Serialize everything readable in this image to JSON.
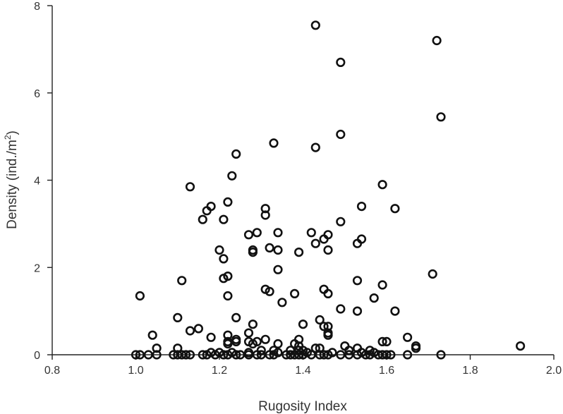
{
  "chart_data": {
    "type": "scatter",
    "xlabel": "Rugosity Index",
    "ylabel_main": "Density (ind./m",
    "ylabel_sup": "2",
    "ylabel_close": ")",
    "xlim": [
      0.8,
      2.0
    ],
    "ylim": [
      0,
      8
    ],
    "xticks": [
      0.8,
      1.0,
      1.2,
      1.4,
      1.6,
      1.8,
      2.0
    ],
    "xtick_labels": [
      "0.8",
      "1.0",
      "1.2",
      "1.4",
      "1.6",
      "1.8",
      "2.0"
    ],
    "yticks": [
      0,
      2,
      4,
      6,
      8
    ],
    "ytick_labels": [
      "0",
      "2",
      "4",
      "6",
      "8"
    ],
    "grid": false,
    "marker": "open-circle",
    "marker_color": "#111111",
    "points": [
      [
        1.01,
        1.35
      ],
      [
        1.11,
        1.7
      ],
      [
        1.13,
        3.85
      ],
      [
        1.16,
        3.1
      ],
      [
        1.17,
        3.3
      ],
      [
        1.18,
        3.4
      ],
      [
        1.2,
        2.4
      ],
      [
        1.21,
        3.1
      ],
      [
        1.21,
        2.2
      ],
      [
        1.21,
        1.75
      ],
      [
        1.22,
        3.5
      ],
      [
        1.22,
        1.8
      ],
      [
        1.22,
        1.35
      ],
      [
        1.23,
        4.1
      ],
      [
        1.24,
        4.6
      ],
      [
        1.27,
        2.75
      ],
      [
        1.28,
        2.4
      ],
      [
        1.28,
        2.35
      ],
      [
        1.29,
        2.8
      ],
      [
        1.31,
        3.35
      ],
      [
        1.31,
        3.2
      ],
      [
        1.31,
        1.5
      ],
      [
        1.32,
        2.45
      ],
      [
        1.32,
        1.45
      ],
      [
        1.33,
        4.85
      ],
      [
        1.34,
        2.8
      ],
      [
        1.34,
        2.4
      ],
      [
        1.34,
        1.95
      ],
      [
        1.35,
        1.2
      ],
      [
        1.38,
        1.4
      ],
      [
        1.39,
        2.35
      ],
      [
        1.42,
        2.8
      ],
      [
        1.43,
        7.55
      ],
      [
        1.43,
        4.75
      ],
      [
        1.43,
        2.55
      ],
      [
        1.45,
        2.65
      ],
      [
        1.45,
        1.5
      ],
      [
        1.46,
        2.75
      ],
      [
        1.46,
        2.4
      ],
      [
        1.46,
        1.4
      ],
      [
        1.49,
        6.7
      ],
      [
        1.49,
        5.05
      ],
      [
        1.49,
        3.05
      ],
      [
        1.49,
        1.05
      ],
      [
        1.53,
        2.55
      ],
      [
        1.53,
        1.7
      ],
      [
        1.53,
        1.0
      ],
      [
        1.54,
        3.4
      ],
      [
        1.54,
        2.65
      ],
      [
        1.57,
        1.3
      ],
      [
        1.59,
        3.9
      ],
      [
        1.59,
        1.6
      ],
      [
        1.62,
        3.35
      ],
      [
        1.62,
        1.0
      ],
      [
        1.71,
        1.85
      ],
      [
        1.72,
        7.2
      ],
      [
        1.73,
        5.45
      ],
      [
        1.04,
        0.45
      ],
      [
        1.05,
        0.15
      ],
      [
        1.1,
        0.85
      ],
      [
        1.1,
        0.15
      ],
      [
        1.13,
        0.55
      ],
      [
        1.15,
        0.6
      ],
      [
        1.18,
        0.4
      ],
      [
        1.18,
        0.05
      ],
      [
        1.2,
        0.05
      ],
      [
        1.22,
        0.45
      ],
      [
        1.22,
        0.3
      ],
      [
        1.22,
        0.25
      ],
      [
        1.23,
        0.05
      ],
      [
        1.24,
        0.85
      ],
      [
        1.24,
        0.35
      ],
      [
        1.24,
        0.3
      ],
      [
        1.27,
        0.5
      ],
      [
        1.27,
        0.3
      ],
      [
        1.27,
        0.05
      ],
      [
        1.28,
        0.7
      ],
      [
        1.28,
        0.25
      ],
      [
        1.29,
        0.3
      ],
      [
        1.3,
        0.1
      ],
      [
        1.31,
        0.35
      ],
      [
        1.33,
        0.1
      ],
      [
        1.34,
        0.25
      ],
      [
        1.34,
        0.05
      ],
      [
        1.37,
        0.1
      ],
      [
        1.38,
        0.25
      ],
      [
        1.39,
        0.35
      ],
      [
        1.39,
        0.2
      ],
      [
        1.39,
        0.1
      ],
      [
        1.4,
        0.7
      ],
      [
        1.4,
        0.1
      ],
      [
        1.41,
        0.05
      ],
      [
        1.43,
        0.15
      ],
      [
        1.44,
        0.8
      ],
      [
        1.44,
        0.15
      ],
      [
        1.45,
        0.65
      ],
      [
        1.46,
        0.65
      ],
      [
        1.46,
        0.5
      ],
      [
        1.46,
        0.45
      ],
      [
        1.47,
        0.05
      ],
      [
        1.5,
        0.2
      ],
      [
        1.51,
        0.1
      ],
      [
        1.53,
        0.15
      ],
      [
        1.54,
        0.05
      ],
      [
        1.56,
        0.1
      ],
      [
        1.57,
        0.05
      ],
      [
        1.59,
        0.3
      ],
      [
        1.6,
        0.3
      ],
      [
        1.65,
        0.4
      ],
      [
        1.67,
        0.2
      ],
      [
        1.67,
        0.15
      ],
      [
        1.92,
        0.2
      ],
      [
        1.0,
        0
      ],
      [
        1.01,
        0
      ],
      [
        1.03,
        0
      ],
      [
        1.05,
        0
      ],
      [
        1.09,
        0
      ],
      [
        1.1,
        0
      ],
      [
        1.11,
        0
      ],
      [
        1.12,
        0
      ],
      [
        1.13,
        0
      ],
      [
        1.16,
        0
      ],
      [
        1.17,
        0
      ],
      [
        1.19,
        0
      ],
      [
        1.21,
        0
      ],
      [
        1.22,
        0
      ],
      [
        1.24,
        0
      ],
      [
        1.25,
        0
      ],
      [
        1.27,
        0
      ],
      [
        1.29,
        0
      ],
      [
        1.3,
        0
      ],
      [
        1.32,
        0
      ],
      [
        1.33,
        0
      ],
      [
        1.36,
        0
      ],
      [
        1.37,
        0
      ],
      [
        1.38,
        0
      ],
      [
        1.39,
        0
      ],
      [
        1.4,
        0
      ],
      [
        1.42,
        0
      ],
      [
        1.44,
        0
      ],
      [
        1.45,
        0
      ],
      [
        1.46,
        0
      ],
      [
        1.49,
        0
      ],
      [
        1.51,
        0
      ],
      [
        1.53,
        0
      ],
      [
        1.55,
        0
      ],
      [
        1.56,
        0
      ],
      [
        1.58,
        0
      ],
      [
        1.59,
        0
      ],
      [
        1.6,
        0
      ],
      [
        1.61,
        0
      ],
      [
        1.65,
        0
      ],
      [
        1.73,
        0
      ]
    ]
  }
}
